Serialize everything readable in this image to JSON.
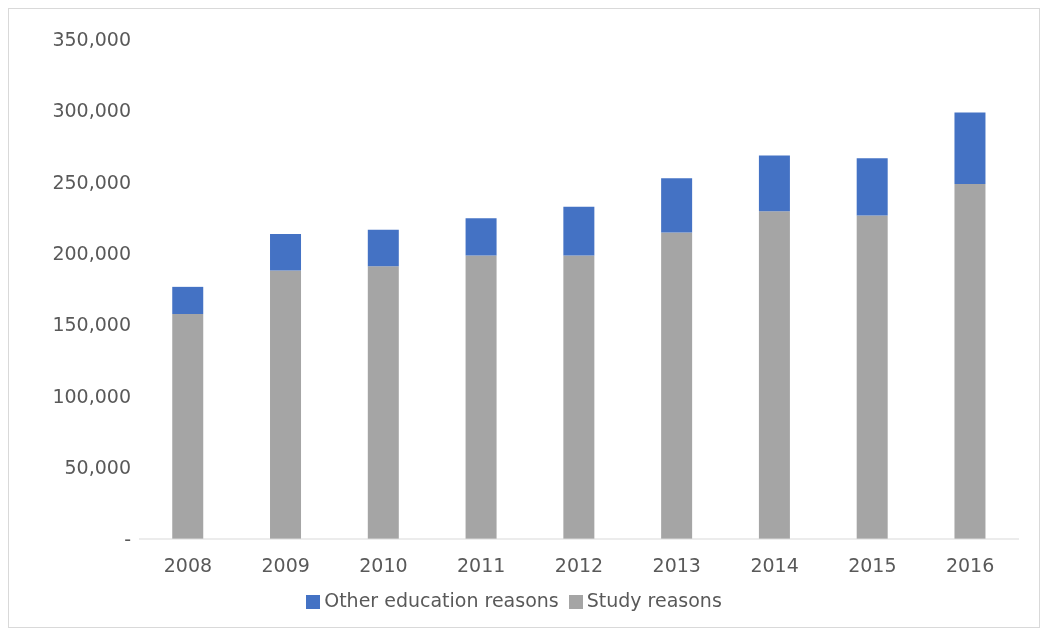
{
  "chart_data": {
    "type": "bar",
    "stacked": true,
    "categories": [
      "2008",
      "2009",
      "2010",
      "2011",
      "2012",
      "2013",
      "2014",
      "2015",
      "2016"
    ],
    "series": [
      {
        "name": "Study reasons",
        "color": "#a5a5a5",
        "values": [
          157500,
          188000,
          191000,
          198500,
          198500,
          214500,
          229500,
          226500,
          248500
        ]
      },
      {
        "name": "Other education reasons",
        "color": "#4472c4",
        "values": [
          19000,
          25500,
          25500,
          26000,
          34000,
          38000,
          39000,
          40000,
          50000
        ]
      }
    ],
    "ylim": [
      0,
      350000
    ],
    "yticks": [
      {
        "value": 0,
        "label": "-"
      },
      {
        "value": 50000,
        "label": "50,000"
      },
      {
        "value": 100000,
        "label": "100,000"
      },
      {
        "value": 150000,
        "label": "150,000"
      },
      {
        "value": 200000,
        "label": "200,000"
      },
      {
        "value": 250000,
        "label": "250,000"
      },
      {
        "value": 300000,
        "label": "300,000"
      },
      {
        "value": 350000,
        "label": "350,000"
      }
    ],
    "grid": false,
    "legend": "bottom"
  }
}
